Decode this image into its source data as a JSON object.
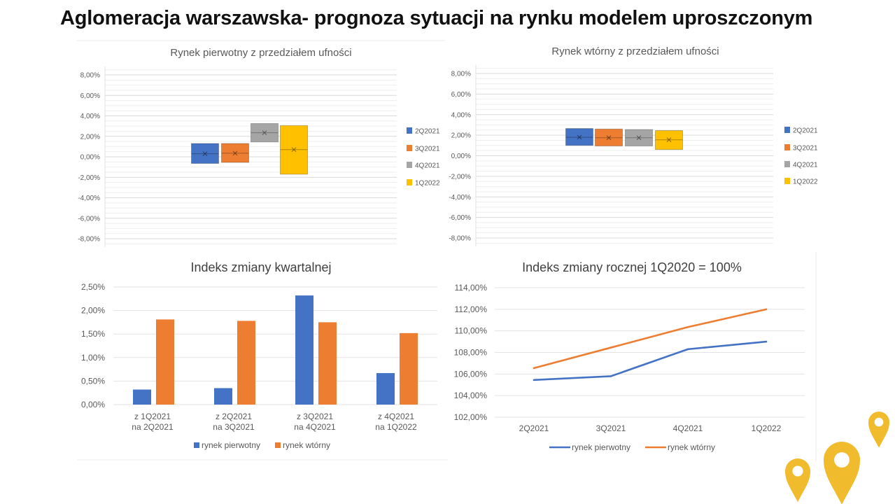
{
  "title": "Aglomeracja warszawska- prognoza sytuacji na rynku modelem uproszczonym",
  "colors": {
    "blue": "#4472C4",
    "orange": "#ED7D31",
    "gray": "#A5A5A5",
    "yellow": "#FFC000",
    "pin": "#F0BC2E"
  },
  "chart_data": [
    {
      "type": "box",
      "title": "Rynek pierwotny z przedziałem ufności",
      "ylim": [
        -8,
        8
      ],
      "yticks": [
        "8,00%",
        "6,00%",
        "4,00%",
        "2,00%",
        "0,00%",
        "-2,00%",
        "-4,00%",
        "-6,00%",
        "-8,00%"
      ],
      "legend_position": "right",
      "grid": true,
      "series": [
        {
          "name": "2Q2021",
          "low": -0.65,
          "high": 1.3,
          "mean": 0.3,
          "color": "#4472C4"
        },
        {
          "name": "3Q2021",
          "low": -0.55,
          "high": 1.3,
          "mean": 0.35,
          "color": "#ED7D31"
        },
        {
          "name": "4Q2021",
          "low": 1.45,
          "high": 3.25,
          "mean": 2.35,
          "color": "#A5A5A5"
        },
        {
          "name": "1Q2022",
          "low": -1.7,
          "high": 3.05,
          "mean": 0.7,
          "color": "#FFC000"
        }
      ]
    },
    {
      "type": "box",
      "title": "Rynek wtórny z przedziałem ufności",
      "ylim": [
        -8,
        8
      ],
      "yticks": [
        "8,00%",
        "6,00%",
        "4,00%",
        "2,00%",
        "0,00%",
        "-2,00%",
        "-4,00%",
        "-6,00%",
        "-8,00%"
      ],
      "legend_position": "right",
      "grid": true,
      "series": [
        {
          "name": "2Q2021",
          "low": 1.0,
          "high": 2.65,
          "mean": 1.8,
          "color": "#4472C4"
        },
        {
          "name": "3Q2021",
          "low": 0.95,
          "high": 2.6,
          "mean": 1.75,
          "color": "#ED7D31"
        },
        {
          "name": "4Q2021",
          "low": 0.95,
          "high": 2.55,
          "mean": 1.75,
          "color": "#A5A5A5"
        },
        {
          "name": "1Q2022",
          "low": 0.6,
          "high": 2.45,
          "mean": 1.55,
          "color": "#FFC000"
        }
      ]
    },
    {
      "type": "bar",
      "title": "Indeks zmiany kwartalnej",
      "ylim": [
        0,
        2.5
      ],
      "yticks": [
        "2,50%",
        "2,00%",
        "1,50%",
        "1,00%",
        "0,50%",
        "0,00%"
      ],
      "categories": [
        [
          "z 1Q2021",
          "na 2Q2021"
        ],
        [
          "z 2Q2021",
          "na 3Q2021"
        ],
        [
          "z 3Q2021",
          "na 4Q2021"
        ],
        [
          "z 4Q2021",
          "na 1Q2022"
        ]
      ],
      "legend_position": "bottom",
      "grid": true,
      "series": [
        {
          "name": "rynek pierwotny",
          "values": [
            0.32,
            0.35,
            2.32,
            0.67
          ],
          "color": "#4472C4"
        },
        {
          "name": "rynek wtórny",
          "values": [
            1.81,
            1.78,
            1.75,
            1.52
          ],
          "color": "#ED7D31"
        }
      ]
    },
    {
      "type": "line",
      "title": "Indeks zmiany rocznej 1Q2020 = 100%",
      "ylim": [
        102,
        114
      ],
      "yticks": [
        "114,00%",
        "112,00%",
        "110,00%",
        "108,00%",
        "106,00%",
        "104,00%",
        "102,00%"
      ],
      "categories": [
        "2Q2021",
        "3Q2021",
        "4Q2021",
        "1Q2022"
      ],
      "legend_position": "bottom",
      "grid": true,
      "series": [
        {
          "name": "rynek pierwotny",
          "values": [
            105.45,
            105.8,
            108.3,
            109.0
          ],
          "color": "#4472C4"
        },
        {
          "name": "rynek wtórny",
          "values": [
            106.55,
            108.45,
            110.35,
            112.0
          ],
          "color": "#ED7D31"
        }
      ]
    }
  ]
}
